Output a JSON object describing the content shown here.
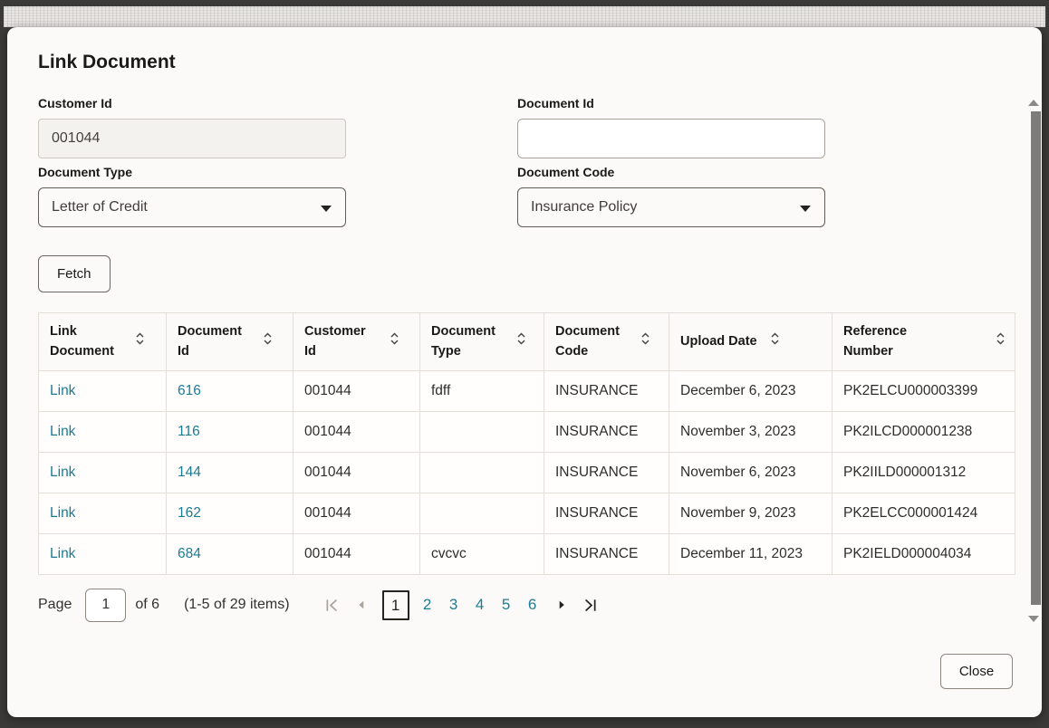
{
  "dialog": {
    "title": "Link Document",
    "fetch_label": "Fetch",
    "close_label": "Close"
  },
  "form": {
    "customer_id": {
      "label": "Customer Id",
      "value": "001044"
    },
    "document_id": {
      "label": "Document Id",
      "value": "",
      "placeholder": ""
    },
    "document_type": {
      "label": "Document Type",
      "value": "Letter of Credit"
    },
    "document_code": {
      "label": "Document Code",
      "value": "Insurance Policy"
    }
  },
  "table": {
    "columns": [
      "Link Document",
      "Document Id",
      "Customer Id",
      "Document Type",
      "Document Code",
      "Upload Date",
      "Reference Number"
    ],
    "row_keys": [
      "link",
      "document_id",
      "customer_id",
      "document_type",
      "document_code",
      "upload_date",
      "reference_number"
    ],
    "link_columns": [
      "link",
      "document_id"
    ],
    "rows": [
      {
        "link": "Link",
        "document_id": "616",
        "customer_id": "001044",
        "document_type": "fdff",
        "document_code": "INSURANCE",
        "upload_date": "December 6, 2023",
        "reference_number": "PK2ELCU000003399"
      },
      {
        "link": "Link",
        "document_id": "116",
        "customer_id": "001044",
        "document_type": "",
        "document_code": "INSURANCE",
        "upload_date": "November 3, 2023",
        "reference_number": "PK2ILCD000001238"
      },
      {
        "link": "Link",
        "document_id": "144",
        "customer_id": "001044",
        "document_type": "",
        "document_code": "INSURANCE",
        "upload_date": "November 6, 2023",
        "reference_number": "PK2IILD000001312"
      },
      {
        "link": "Link",
        "document_id": "162",
        "customer_id": "001044",
        "document_type": "",
        "document_code": "INSURANCE",
        "upload_date": "November 9, 2023",
        "reference_number": "PK2ELCC000001424"
      },
      {
        "link": "Link",
        "document_id": "684",
        "customer_id": "001044",
        "document_type": "cvcvc",
        "document_code": "INSURANCE",
        "upload_date": "December 11, 2023",
        "reference_number": "PK2IELD000004034"
      }
    ]
  },
  "pagination": {
    "page_label": "Page",
    "current_page": "1",
    "of_label": "of 6",
    "items_label": "(1-5 of 29 items)",
    "pages": [
      "1",
      "2",
      "3",
      "4",
      "5",
      "6"
    ]
  },
  "icons": {
    "sort": "chevron-up-down",
    "dropdown": "caret-down",
    "first_page": "bar-chevron-left",
    "prev_page": "triangle-left",
    "next_page": "triangle-right",
    "last_page": "chevron-right-bar",
    "scroll_up": "triangle-up",
    "scroll_down": "triangle-down"
  },
  "colors": {
    "link": "#1b7b93",
    "text": "#1b1916",
    "modal_bg": "#fbfaf8",
    "frame": "#3b3a38"
  }
}
